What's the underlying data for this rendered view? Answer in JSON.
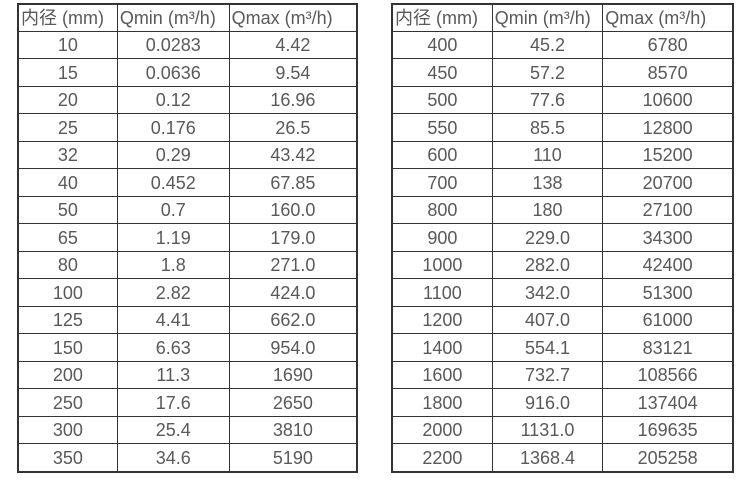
{
  "colors": {
    "background": "#ffffff",
    "border": "#333333",
    "text": "#595959"
  },
  "left_table": {
    "headers": [
      "内径 (mm)",
      "Qmin (m³/h)",
      "Qmax (m³/h)"
    ],
    "rows": [
      [
        "10",
        "0.0283",
        "4.42"
      ],
      [
        "15",
        "0.0636",
        "9.54"
      ],
      [
        "20",
        "0.12",
        "16.96"
      ],
      [
        "25",
        "0.176",
        "26.5"
      ],
      [
        "32",
        "0.29",
        "43.42"
      ],
      [
        "40",
        "0.452",
        "67.85"
      ],
      [
        "50",
        "0.7",
        "160.0"
      ],
      [
        "65",
        "1.19",
        "179.0"
      ],
      [
        "80",
        "1.8",
        "271.0"
      ],
      [
        "100",
        "2.82",
        "424.0"
      ],
      [
        "125",
        "4.41",
        "662.0"
      ],
      [
        "150",
        "6.63",
        "954.0"
      ],
      [
        "200",
        "11.3",
        "1690"
      ],
      [
        "250",
        "17.6",
        "2650"
      ],
      [
        "300",
        "25.4",
        "3810"
      ],
      [
        "350",
        "34.6",
        "5190"
      ]
    ]
  },
  "right_table": {
    "headers": [
      "内径 (mm)",
      "Qmin (m³/h)",
      "Qmax (m³/h)"
    ],
    "rows": [
      [
        "400",
        "45.2",
        "6780"
      ],
      [
        "450",
        "57.2",
        "8570"
      ],
      [
        "500",
        "77.6",
        "10600"
      ],
      [
        "550",
        "85.5",
        "12800"
      ],
      [
        "600",
        "110",
        "15200"
      ],
      [
        "700",
        "138",
        "20700"
      ],
      [
        "800",
        "180",
        "27100"
      ],
      [
        "900",
        "229.0",
        "34300"
      ],
      [
        "1000",
        "282.0",
        "42400"
      ],
      [
        "1100",
        "342.0",
        "51300"
      ],
      [
        "1200",
        "407.0",
        "61000"
      ],
      [
        "1400",
        "554.1",
        "83121"
      ],
      [
        "1600",
        "732.7",
        "108566"
      ],
      [
        "1800",
        "916.0",
        "137404"
      ],
      [
        "2000",
        "1131.0",
        "169635"
      ],
      [
        "2200",
        "1368.4",
        "205258"
      ]
    ]
  }
}
